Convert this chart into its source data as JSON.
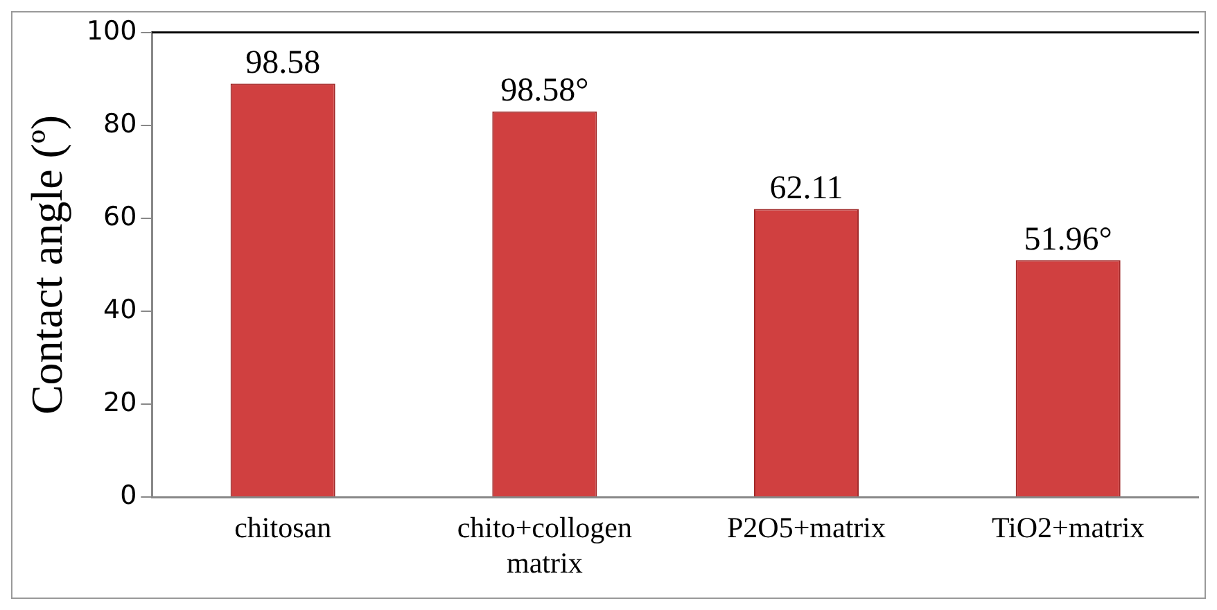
{
  "chart_data": {
    "type": "bar",
    "ylabel": "Contact angle (º)",
    "categories": [
      "chitosan",
      "chito+collogen matrix",
      "P2O5+matrix",
      "TiO2+matrix"
    ],
    "values": [
      89,
      83,
      62,
      51
    ],
    "color": "#d04040",
    "annotations": [
      {
        "text": "98.58",
        "x": "chitosan",
        "y": 89
      },
      {
        "text": "98.58°",
        "x": "chito+collogen matrix",
        "y": 83
      },
      {
        "text": "62.11",
        "x": "P2O5+matrix",
        "y": 62
      },
      {
        "text": "51.96°",
        "x": "TiO2+matrix",
        "y": 51
      }
    ],
    "ylim": [
      0,
      100
    ],
    "yticks": [
      0,
      20,
      40,
      60,
      80,
      100
    ],
    "grid": false,
    "legend": false
  }
}
